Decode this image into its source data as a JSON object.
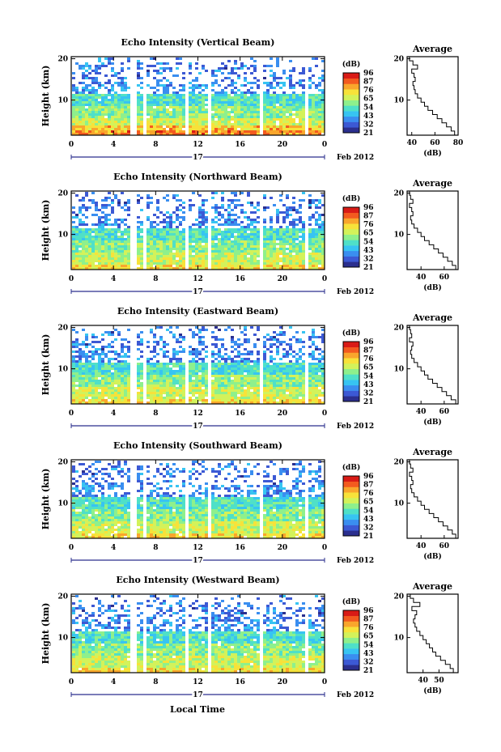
{
  "figure": {
    "xlabel": "Local Time"
  },
  "colors": {
    "scale": [
      "#2b2f8e",
      "#3c59d4",
      "#3a8ef0",
      "#37c4f2",
      "#4fe0c8",
      "#8ef08c",
      "#d3f25a",
      "#f7e23a",
      "#f9a62c",
      "#f35a1f",
      "#d91b16"
    ],
    "cbar_min": 21,
    "cbar_max": 99
  },
  "chart_data": [
    {
      "type": "heatmap",
      "title": "Echo Intensity (Vertical Beam)",
      "ylabel": "Height (km)",
      "xlim": [
        0,
        24
      ],
      "ylim": [
        1.5,
        20.5
      ],
      "xticks": [
        "0",
        "4",
        "8",
        "12",
        "16",
        "20",
        "0"
      ],
      "yticks": [
        "10",
        "20"
      ],
      "date_main": "17",
      "date_suffix": "Feb 2012",
      "colorbar": {
        "label": "(dB)",
        "ticks": [
          "96",
          "87",
          "76",
          "65",
          "54",
          "43",
          "32",
          "21"
        ]
      },
      "gaps_hours": [
        [
          5.5,
          6.0
        ],
        [
          6.6,
          6.9
        ],
        [
          10.7,
          11.0
        ],
        [
          12.9,
          13.2
        ],
        [
          17.7,
          18.0
        ],
        [
          21.9,
          22.2
        ]
      ],
      "profile": {
        "title": "Average",
        "xlabel": "(dB)",
        "xlim": [
          36,
          80
        ],
        "xticks": [
          "40",
          "60",
          "80"
        ],
        "yticks": [
          "10",
          "20"
        ],
        "heights": [
          2,
          3,
          4,
          5,
          6,
          7,
          8,
          9,
          10,
          11,
          12,
          13,
          14,
          15,
          16,
          17,
          18,
          19,
          20
        ],
        "values": [
          77,
          74,
          70,
          66,
          62,
          58,
          54,
          51,
          48,
          45,
          43,
          42,
          41,
          43,
          42,
          40,
          45,
          41,
          38
        ]
      }
    },
    {
      "type": "heatmap",
      "title": "Echo Intensity (Northward Beam)",
      "ylabel": "Height (km)",
      "xlim": [
        0,
        24
      ],
      "ylim": [
        1.5,
        20.5
      ],
      "xticks": [
        "0",
        "4",
        "8",
        "12",
        "16",
        "20",
        "0"
      ],
      "yticks": [
        "10",
        "20"
      ],
      "date_main": "17",
      "date_suffix": "Feb 2012",
      "colorbar": {
        "label": "(dB)",
        "ticks": [
          "96",
          "87",
          "76",
          "65",
          "54",
          "43",
          "32",
          "21"
        ]
      },
      "gaps_hours": [
        [
          5.5,
          6.0
        ],
        [
          6.6,
          6.9
        ],
        [
          10.7,
          11.0
        ],
        [
          12.9,
          13.2
        ],
        [
          17.7,
          18.0
        ],
        [
          21.9,
          22.2
        ]
      ],
      "profile": {
        "title": "Average",
        "xlabel": "(dB)",
        "xlim": [
          28,
          72
        ],
        "xticks": [
          "40",
          "60"
        ],
        "yticks": [
          "10",
          "20"
        ],
        "heights": [
          2,
          3,
          4,
          5,
          6,
          7,
          8,
          9,
          10,
          11,
          12,
          13,
          14,
          15,
          16,
          17,
          18,
          19,
          20
        ],
        "values": [
          70,
          67,
          63,
          59,
          55,
          51,
          47,
          43,
          40,
          37,
          34,
          32,
          31,
          33,
          32,
          30,
          33,
          31,
          30
        ]
      }
    },
    {
      "type": "heatmap",
      "title": "Echo Intensity (Eastward Beam)",
      "ylabel": "Height (km)",
      "xlim": [
        0,
        24
      ],
      "ylim": [
        1.5,
        20.5
      ],
      "xticks": [
        "0",
        "4",
        "8",
        "12",
        "16",
        "20",
        "0"
      ],
      "yticks": [
        "10",
        "20"
      ],
      "date_main": "17",
      "date_suffix": "Feb 2012",
      "colorbar": {
        "label": "(dB)",
        "ticks": [
          "96",
          "87",
          "76",
          "65",
          "54",
          "43",
          "32",
          "21"
        ]
      },
      "gaps_hours": [
        [
          5.5,
          6.0
        ],
        [
          6.6,
          6.9
        ],
        [
          10.7,
          11.0
        ],
        [
          12.9,
          13.2
        ],
        [
          17.7,
          18.0
        ],
        [
          21.9,
          22.2
        ]
      ],
      "profile": {
        "title": "Average",
        "xlabel": "(dB)",
        "xlim": [
          28,
          72
        ],
        "xticks": [
          "40",
          "60"
        ],
        "yticks": [
          "10",
          "20"
        ],
        "heights": [
          2,
          3,
          4,
          5,
          6,
          7,
          8,
          9,
          10,
          11,
          12,
          13,
          14,
          15,
          16,
          17,
          18,
          19,
          20
        ],
        "values": [
          70,
          66,
          62,
          58,
          54,
          50,
          46,
          43,
          40,
          37,
          34,
          32,
          31,
          32,
          33,
          30,
          32,
          31,
          30
        ]
      }
    },
    {
      "type": "heatmap",
      "title": "Echo Intensity (Southward Beam)",
      "ylabel": "Height (km)",
      "xlim": [
        0,
        24
      ],
      "ylim": [
        1.5,
        20.5
      ],
      "xticks": [
        "0",
        "4",
        "8",
        "12",
        "16",
        "20",
        "0"
      ],
      "yticks": [
        "10",
        "20"
      ],
      "date_main": "17",
      "date_suffix": "Feb 2012",
      "colorbar": {
        "label": "(dB)",
        "ticks": [
          "96",
          "87",
          "76",
          "65",
          "54",
          "43",
          "32",
          "21"
        ]
      },
      "gaps_hours": [
        [
          5.5,
          6.0
        ],
        [
          6.6,
          6.9
        ],
        [
          10.7,
          11.0
        ],
        [
          12.9,
          13.2
        ],
        [
          17.7,
          18.0
        ],
        [
          21.9,
          22.2
        ]
      ],
      "profile": {
        "title": "Average",
        "xlabel": "(dB)",
        "xlim": [
          28,
          72
        ],
        "xticks": [
          "40",
          "60"
        ],
        "yticks": [
          "10",
          "20"
        ],
        "heights": [
          2,
          3,
          4,
          5,
          6,
          7,
          8,
          9,
          10,
          11,
          12,
          13,
          14,
          15,
          16,
          17,
          18,
          19,
          20
        ],
        "values": [
          70,
          67,
          63,
          59,
          55,
          51,
          47,
          43,
          40,
          37,
          34,
          32,
          31,
          33,
          32,
          30,
          33,
          31,
          30
        ]
      }
    },
    {
      "type": "heatmap",
      "title": "Echo Intensity (Westward Beam)",
      "ylabel": "Height (km)",
      "xlim": [
        0,
        24
      ],
      "ylim": [
        1.5,
        20.5
      ],
      "xticks": [
        "0",
        "4",
        "8",
        "12",
        "16",
        "20",
        "0"
      ],
      "yticks": [
        "10",
        "20"
      ],
      "date_main": "17",
      "date_suffix": "Feb 2012",
      "colorbar": {
        "label": "(dB)",
        "ticks": [
          "96",
          "87",
          "76",
          "65",
          "54",
          "43",
          "32",
          "21"
        ]
      },
      "gaps_hours": [
        [
          5.5,
          6.0
        ],
        [
          6.6,
          6.9
        ],
        [
          10.7,
          11.0
        ],
        [
          12.9,
          13.2
        ],
        [
          17.7,
          18.0
        ],
        [
          21.9,
          22.2
        ]
      ],
      "profile": {
        "title": "Average",
        "xlabel": "(dB)",
        "xlim": [
          30,
          62
        ],
        "xticks": [
          "40",
          "50"
        ],
        "yticks": [
          "10",
          "20"
        ],
        "heights": [
          2,
          3,
          4,
          5,
          6,
          7,
          8,
          9,
          10,
          11,
          12,
          13,
          14,
          15,
          16,
          17,
          18,
          19,
          20
        ],
        "values": [
          59,
          57,
          54,
          51,
          48,
          46,
          44,
          42,
          40,
          38,
          36,
          35,
          34,
          35,
          36,
          33,
          38,
          34,
          32
        ]
      }
    }
  ]
}
